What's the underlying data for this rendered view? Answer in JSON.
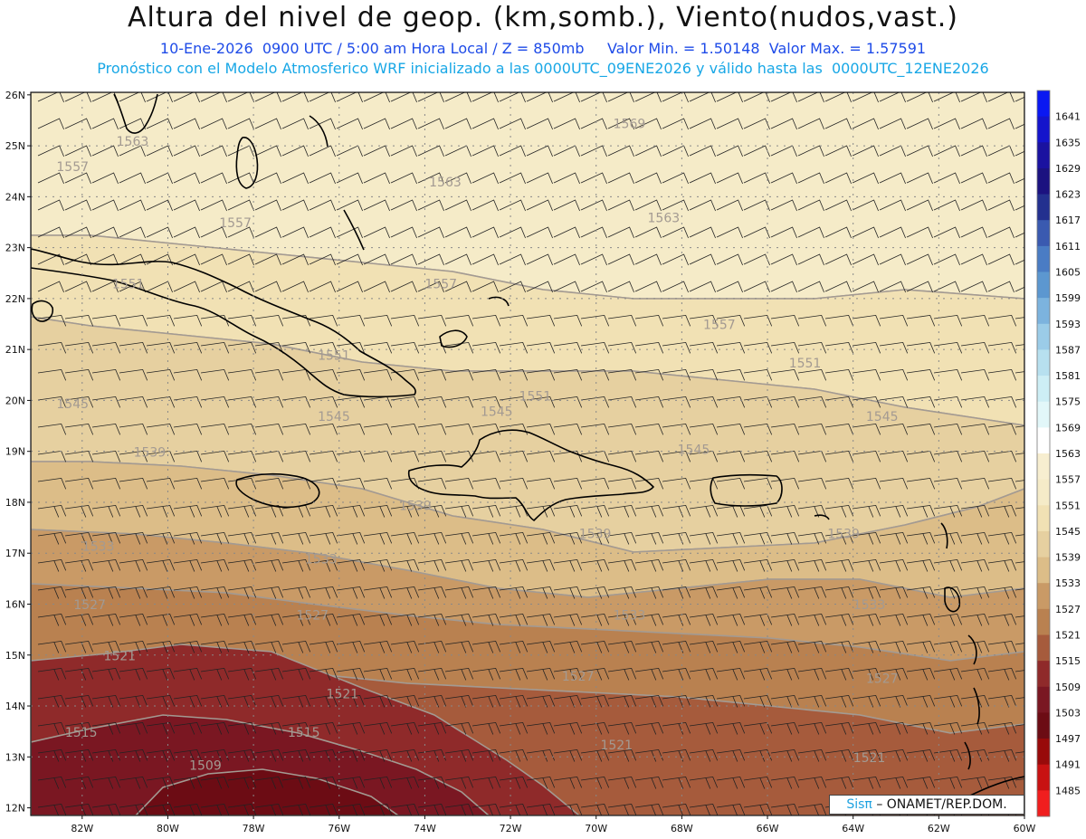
{
  "header": {
    "title": "Altura del nivel de geop. (km,somb.), Viento(nudos,vast.)",
    "subtitle_time": "10-Ene-2026  0900 UTC / 5:00 am Hora Local / Z = 850mb     Valor Min. = 1.50148  Valor Max. = 1.57591",
    "subtitle_model": "Pronóstico con el Modelo Atmosferico WRF inicializado a las 0000UTC_09ENE2026 y válido hasta las  0000UTC_12ENE2026"
  },
  "map": {
    "lon_range": [
      -83.2,
      -60
    ],
    "lat_range": [
      11.85,
      26.05
    ],
    "lat_ticks": [
      "26N",
      "25N",
      "24N",
      "23N",
      "22N",
      "21N",
      "20N",
      "19N",
      "18N",
      "17N",
      "16N",
      "15N",
      "14N",
      "13N",
      "12N"
    ],
    "lon_ticks": [
      "82W",
      "80W",
      "78W",
      "76W",
      "74W",
      "72W",
      "70W",
      "68W",
      "66W",
      "64W",
      "62W",
      "60W"
    ],
    "contour_labels": [
      {
        "text": "1563",
        "lon": -81.2,
        "lat": 25.0
      },
      {
        "text": "1557",
        "lon": -82.6,
        "lat": 24.5
      },
      {
        "text": "1569",
        "lon": -69.6,
        "lat": 25.35
      },
      {
        "text": "1563",
        "lon": -73.9,
        "lat": 24.2
      },
      {
        "text": "1563",
        "lon": -68.8,
        "lat": 23.5
      },
      {
        "text": "1557",
        "lon": -78.8,
        "lat": 23.4
      },
      {
        "text": "1557",
        "lon": -74.0,
        "lat": 22.2
      },
      {
        "text": "1551",
        "lon": -81.3,
        "lat": 22.2
      },
      {
        "text": "1557",
        "lon": -67.5,
        "lat": 21.4
      },
      {
        "text": "1551",
        "lon": -76.5,
        "lat": 20.8
      },
      {
        "text": "1551",
        "lon": -65.5,
        "lat": 20.65
      },
      {
        "text": "1551",
        "lon": -71.8,
        "lat": 20.0
      },
      {
        "text": "1545",
        "lon": -82.6,
        "lat": 19.85
      },
      {
        "text": "1545",
        "lon": -76.5,
        "lat": 19.6
      },
      {
        "text": "1545",
        "lon": -72.7,
        "lat": 19.7
      },
      {
        "text": "1545",
        "lon": -63.7,
        "lat": 19.6
      },
      {
        "text": "1545",
        "lon": -68.1,
        "lat": 18.95
      },
      {
        "text": "1539",
        "lon": -80.8,
        "lat": 18.9
      },
      {
        "text": "1539",
        "lon": -74.6,
        "lat": 17.85
      },
      {
        "text": "1539",
        "lon": -70.4,
        "lat": 17.3
      },
      {
        "text": "1539",
        "lon": -64.6,
        "lat": 17.3
      },
      {
        "text": "1533",
        "lon": -82.0,
        "lat": 17.05
      },
      {
        "text": "1533",
        "lon": -76.8,
        "lat": 16.8
      },
      {
        "text": "1527",
        "lon": -82.2,
        "lat": 15.9
      },
      {
        "text": "1527",
        "lon": -77.0,
        "lat": 15.7
      },
      {
        "text": "1533",
        "lon": -69.6,
        "lat": 15.7
      },
      {
        "text": "1533",
        "lon": -64.0,
        "lat": 15.9
      },
      {
        "text": "1521",
        "lon": -81.5,
        "lat": 14.9
      },
      {
        "text": "1521",
        "lon": -76.3,
        "lat": 14.15
      },
      {
        "text": "1527",
        "lon": -70.8,
        "lat": 14.5
      },
      {
        "text": "1527",
        "lon": -63.7,
        "lat": 14.45
      },
      {
        "text": "1515",
        "lon": -82.4,
        "lat": 13.4
      },
      {
        "text": "1515",
        "lon": -77.2,
        "lat": 13.4
      },
      {
        "text": "1521",
        "lon": -69.9,
        "lat": 13.15
      },
      {
        "text": "1521",
        "lon": -64.0,
        "lat": 12.9
      },
      {
        "text": "1509",
        "lon": -79.5,
        "lat": 12.75
      }
    ]
  },
  "colorbar": {
    "levels": [
      "1641",
      "1635",
      "1629",
      "1623",
      "1617",
      "1611",
      "1605",
      "1599",
      "1593",
      "1587",
      "1581",
      "1575",
      "1569",
      "1563",
      "1557",
      "1551",
      "1545",
      "1539",
      "1533",
      "1527",
      "1521",
      "1515",
      "1509",
      "1503",
      "1497",
      "1491",
      "1485"
    ],
    "colors": [
      "#0a18f2",
      "#1414cc",
      "#1a12a0",
      "#1b1280",
      "#23308f",
      "#3a5ab0",
      "#4a7cc4",
      "#5c97d0",
      "#7cb3de",
      "#9bcce8",
      "#b7e0ef",
      "#cdeef5",
      "#e2f7f9",
      "#ffffff",
      "#f7eed0",
      "#f5ebc8",
      "#f1e1b4",
      "#e6d0a0",
      "#dcbd88",
      "#c99a66",
      "#b98150",
      "#a65b3c",
      "#8f2a2a",
      "#7a1722",
      "#6c0c14",
      "#980a0a",
      "#c81212",
      "#f01e1e"
    ]
  },
  "credit": {
    "logo": "Sisπ",
    "text": "– ONAMET/REP.DOM."
  },
  "colors": {
    "contour": "#a39a92",
    "coast": "#000000",
    "barb": "#222222",
    "grid": "#888888",
    "title": "#111111",
    "subtitle_blue": "#1e4be8",
    "subtitle_cyan": "#18a7e6"
  }
}
